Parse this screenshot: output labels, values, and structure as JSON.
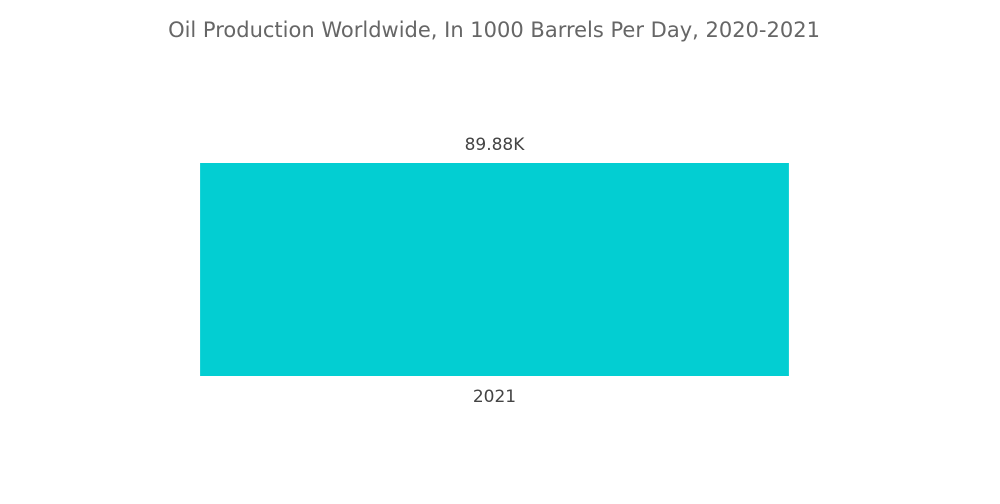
{
  "chart_data": {
    "type": "bar",
    "title": "Oil Production Worldwide, In 1000 Barrels Per Day, 2020-2021",
    "categories": [
      "2021"
    ],
    "values": [
      89880
    ],
    "value_labels": [
      "89.88K"
    ],
    "color": "#03ced2"
  }
}
